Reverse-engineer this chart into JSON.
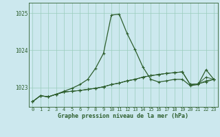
{
  "xlabel": "Graphe pression niveau de la mer (hPa)",
  "bg_color": "#cce8ee",
  "grid_color": "#99ccbb",
  "line_color": "#2d5e2d",
  "xlim_min": -0.5,
  "xlim_max": 23.5,
  "ylim_min": 1022.48,
  "ylim_max": 1025.28,
  "yticks": [
    1023,
    1024,
    1025
  ],
  "xticks": [
    0,
    1,
    2,
    3,
    4,
    5,
    6,
    7,
    8,
    9,
    10,
    11,
    12,
    13,
    14,
    15,
    16,
    17,
    18,
    19,
    20,
    21,
    22,
    23
  ],
  "series_main": [
    1022.62,
    1022.78,
    1022.75,
    1022.82,
    1022.9,
    1022.98,
    1023.08,
    1023.22,
    1023.52,
    1023.92,
    1024.95,
    1024.97,
    1024.45,
    1024.02,
    1023.55,
    1023.22,
    1023.15,
    1023.18,
    1023.22,
    1023.22,
    1023.05,
    1023.08,
    1023.48,
    1023.22
  ],
  "series_flat1": [
    1022.62,
    1022.78,
    1022.75,
    1022.82,
    1022.88,
    1022.9,
    1022.92,
    1022.95,
    1022.98,
    1023.02,
    1023.08,
    1023.12,
    1023.18,
    1023.22,
    1023.28,
    1023.32,
    1023.35,
    1023.38,
    1023.4,
    1023.42,
    1023.08,
    1023.1,
    1023.15,
    1023.22
  ],
  "series_flat2": [
    1022.62,
    1022.78,
    1022.75,
    1022.82,
    1022.88,
    1022.9,
    1022.92,
    1022.95,
    1022.98,
    1023.02,
    1023.08,
    1023.12,
    1023.18,
    1023.22,
    1023.28,
    1023.32,
    1023.35,
    1023.38,
    1023.4,
    1023.42,
    1023.08,
    1023.1,
    1023.18,
    1023.22
  ],
  "series_flat3": [
    1022.62,
    1022.78,
    1022.75,
    1022.82,
    1022.88,
    1022.9,
    1022.92,
    1022.95,
    1022.98,
    1023.02,
    1023.08,
    1023.12,
    1023.18,
    1023.22,
    1023.28,
    1023.32,
    1023.35,
    1023.38,
    1023.4,
    1023.42,
    1023.08,
    1023.1,
    1023.28,
    1023.22
  ]
}
